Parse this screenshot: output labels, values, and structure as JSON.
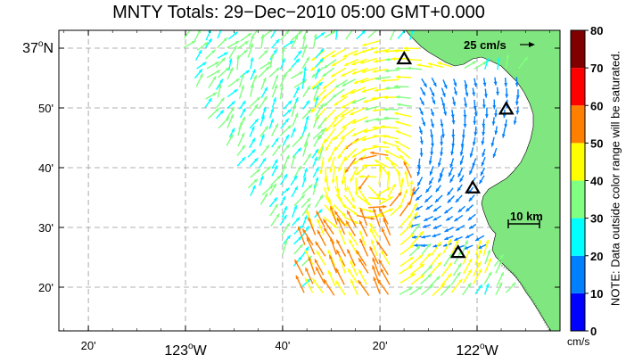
{
  "title": "MNTY Totals: 29−Dec−2010 05:00 GMT+0.000",
  "lon_ticks": [
    {
      "lon": -123.333,
      "label": "20'",
      "major": false
    },
    {
      "lon": -123.0,
      "label": "123",
      "major": true
    },
    {
      "lon": -122.667,
      "label": "40'",
      "major": false
    },
    {
      "lon": -122.333,
      "label": "20'",
      "major": false
    },
    {
      "lon": -122.0,
      "label": "122",
      "major": true
    }
  ],
  "lon_major_suffix": "W",
  "lat_ticks": [
    {
      "lat": 37.0,
      "label": "37",
      "major": true
    },
    {
      "lat": 36.8333,
      "label": "50'",
      "major": false
    },
    {
      "lat": 36.6667,
      "label": "40'",
      "major": false
    },
    {
      "lat": 36.5,
      "label": "30'",
      "major": false
    },
    {
      "lat": 36.3333,
      "label": "20'",
      "major": false
    }
  ],
  "lat_major_suffix": "N",
  "degree_symbol": "o",
  "scale_arrow": {
    "label": "25 cm/s"
  },
  "scale_bar": {
    "label": "10 km"
  },
  "colorbar": {
    "ticks": [
      0,
      10,
      20,
      30,
      40,
      50,
      60,
      70,
      80
    ],
    "colors": [
      "#0000ff",
      "#0080ff",
      "#00ffff",
      "#80ff80",
      "#ffff00",
      "#ff8000",
      "#ff0000",
      "#800000"
    ],
    "unit": "cm/s",
    "note": "NOTE: Data outside color range will be saturated."
  },
  "land_color": "#80e680",
  "stations": [
    {
      "lon": -122.25,
      "lat": 36.97
    },
    {
      "lon": -121.9,
      "lat": 36.83
    },
    {
      "lon": -122.015,
      "lat": 36.61
    },
    {
      "lon": -122.065,
      "lat": 36.43
    }
  ]
}
